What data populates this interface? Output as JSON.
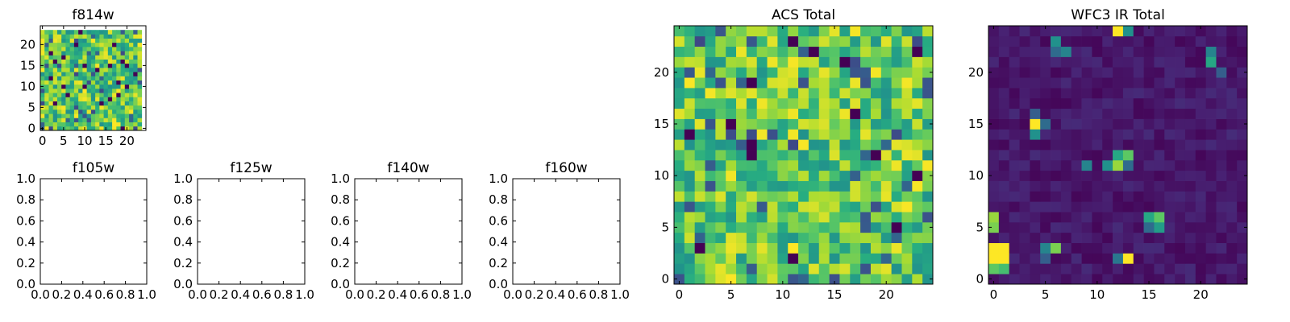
{
  "figure": {
    "background": "#ffffff",
    "colormap": "viridis",
    "colors": [
      "#440154",
      "#31688e",
      "#35b779",
      "#fde725"
    ]
  },
  "chart_data": [
    {
      "type": "heatmap",
      "title": "f814w",
      "xlabel": "",
      "ylabel": "",
      "shape": [
        24,
        24
      ],
      "colormap": "viridis",
      "xlim": [
        -0.5,
        24.5
      ],
      "ylim": [
        -0.5,
        24.5
      ],
      "xticks": [
        "0",
        "5",
        "10",
        "15",
        "20"
      ],
      "yticks": [
        "0",
        "5",
        "10",
        "15",
        "20"
      ],
      "values": "pseudo-random per-pixel noise; mostly green-to-yellow with sparse dark-purple pixels (24x24)"
    },
    {
      "type": "scatter",
      "title": "f105w",
      "xlabel": "",
      "ylabel": "",
      "xlim": [
        0,
        1
      ],
      "ylim": [
        0,
        1
      ],
      "empty": true,
      "xticks": [
        "0.0",
        "0.2",
        "0.4",
        "0.6",
        "0.8",
        "1.0"
      ],
      "yticks": [
        "0.0",
        "0.2",
        "0.4",
        "0.6",
        "0.8",
        "1.0"
      ]
    },
    {
      "type": "scatter",
      "title": "f125w",
      "xlabel": "",
      "ylabel": "",
      "xlim": [
        0,
        1
      ],
      "ylim": [
        0,
        1
      ],
      "empty": true,
      "xticks": [
        "0.0",
        "0.2",
        "0.4",
        "0.6",
        "0.8",
        "1.0"
      ],
      "yticks": [
        "0.0",
        "0.2",
        "0.4",
        "0.6",
        "0.8",
        "1.0"
      ]
    },
    {
      "type": "scatter",
      "title": "f140w",
      "xlabel": "",
      "ylabel": "",
      "xlim": [
        0,
        1
      ],
      "ylim": [
        0,
        1
      ],
      "empty": true,
      "xticks": [
        "0.0",
        "0.2",
        "0.4",
        "0.6",
        "0.8",
        "1.0"
      ],
      "yticks": [
        "0.0",
        "0.2",
        "0.4",
        "0.6",
        "0.8",
        "1.0"
      ]
    },
    {
      "type": "scatter",
      "title": "f160w",
      "xlabel": "",
      "ylabel": "",
      "xlim": [
        0,
        1
      ],
      "ylim": [
        0,
        1
      ],
      "empty": true,
      "xticks": [
        "0.0",
        "0.2",
        "0.4",
        "0.6",
        "0.8",
        "1.0"
      ],
      "yticks": [
        "0.0",
        "0.2",
        "0.4",
        "0.6",
        "0.8",
        "1.0"
      ]
    },
    {
      "type": "heatmap",
      "title": "ACS Total",
      "xlabel": "",
      "ylabel": "",
      "shape": [
        25,
        25
      ],
      "colormap": "viridis",
      "xlim": [
        -0.5,
        24.5
      ],
      "ylim": [
        -0.5,
        24.5
      ],
      "xticks": [
        "0",
        "5",
        "10",
        "15",
        "20"
      ],
      "yticks": [
        "0",
        "5",
        "10",
        "15",
        "20"
      ],
      "values": "pseudo-random per-pixel noise; mostly green-to-yellow with sparse dark-purple pixels (25x25)"
    },
    {
      "type": "heatmap",
      "title": "WFC3 IR Total",
      "xlabel": "",
      "ylabel": "",
      "shape": [
        25,
        25
      ],
      "colormap": "viridis",
      "xlim": [
        -0.5,
        24.5
      ],
      "ylim": [
        -0.5,
        24.5
      ],
      "xticks": [
        "0",
        "5",
        "10",
        "15",
        "20"
      ],
      "yticks": [
        "0",
        "5",
        "10",
        "15",
        "20"
      ],
      "background_level": "low (dark purple)",
      "bright_sources": [
        {
          "x": 0,
          "y": 2,
          "level": 1.0
        },
        {
          "x": 0,
          "y": 3,
          "level": 1.0
        },
        {
          "x": 1,
          "y": 2,
          "level": 1.0
        },
        {
          "x": 1,
          "y": 3,
          "level": 1.0
        },
        {
          "x": 0,
          "y": 1,
          "level": 0.75
        },
        {
          "x": 1,
          "y": 1,
          "level": 0.7
        },
        {
          "x": 0,
          "y": 5,
          "level": 0.8
        },
        {
          "x": 0,
          "y": 6,
          "level": 0.85
        },
        {
          "x": 5,
          "y": 3,
          "level": 0.45
        },
        {
          "x": 6,
          "y": 3,
          "level": 0.8
        },
        {
          "x": 5,
          "y": 2,
          "level": 0.3
        },
        {
          "x": 12,
          "y": 2,
          "level": 0.4
        },
        {
          "x": 13,
          "y": 2,
          "level": 1.0
        },
        {
          "x": 15,
          "y": 6,
          "level": 0.6
        },
        {
          "x": 16,
          "y": 6,
          "level": 0.75
        },
        {
          "x": 16,
          "y": 5,
          "level": 0.55
        },
        {
          "x": 15,
          "y": 5,
          "level": 0.35
        },
        {
          "x": 9,
          "y": 11,
          "level": 0.45
        },
        {
          "x": 11,
          "y": 11,
          "level": 0.5
        },
        {
          "x": 12,
          "y": 11,
          "level": 0.85
        },
        {
          "x": 12,
          "y": 12,
          "level": 0.6
        },
        {
          "x": 13,
          "y": 12,
          "level": 0.75
        },
        {
          "x": 13,
          "y": 11,
          "level": 0.35
        },
        {
          "x": 4,
          "y": 15,
          "level": 1.0
        },
        {
          "x": 4,
          "y": 14,
          "level": 0.5
        },
        {
          "x": 5,
          "y": 15,
          "level": 0.35
        },
        {
          "x": 4,
          "y": 16,
          "level": 0.3
        },
        {
          "x": 6,
          "y": 23,
          "level": 0.5
        },
        {
          "x": 7,
          "y": 22,
          "level": 0.45
        },
        {
          "x": 6,
          "y": 22,
          "level": 0.35
        },
        {
          "x": 12,
          "y": 24,
          "level": 1.0
        },
        {
          "x": 13,
          "y": 24,
          "level": 0.5
        },
        {
          "x": 21,
          "y": 21,
          "level": 0.6
        },
        {
          "x": 21,
          "y": 22,
          "level": 0.45
        },
        {
          "x": 22,
          "y": 20,
          "level": 0.3
        }
      ]
    }
  ]
}
